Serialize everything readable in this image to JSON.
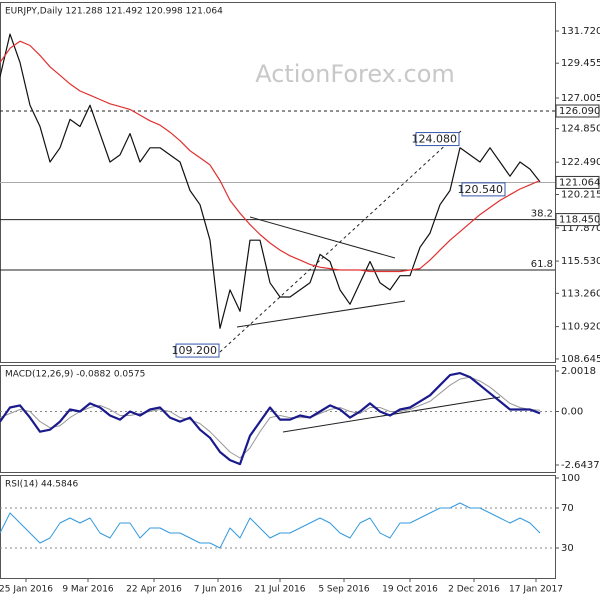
{
  "chart_data": [
    {
      "type": "line",
      "title": "EURJPY,Daily  121.288 121.492 120.998 121.064",
      "watermark": "ActionForex.com",
      "x": [
        0,
        5,
        10,
        15,
        20,
        25,
        30,
        35,
        40,
        45,
        50,
        55,
        60,
        65,
        70,
        75,
        80,
        85,
        90,
        95,
        100,
        105,
        110,
        115,
        120,
        125,
        130,
        135,
        140,
        145,
        150,
        155,
        160,
        165,
        170,
        175,
        180,
        185,
        190,
        195,
        200,
        205,
        210,
        215,
        220,
        225,
        230,
        235,
        240,
        245,
        250,
        255,
        260,
        265,
        270
      ],
      "xlim": [
        0,
        277.5
      ],
      "ylim": [
        108.43,
        133.76
      ],
      "yticks": [
        {
          "value": 131.72,
          "label": "131.720"
        },
        129.455,
        127.005,
        {
          "value": 124.85,
          "label": "124.850"
        },
        {
          "value": 122.49,
          "label": "122.490"
        },
        120.215,
        {
          "value": 117.87,
          "label": "117.870"
        },
        {
          "value": 115.53,
          "label": "115.530"
        },
        {
          "value": 113.26,
          "label": "113.260"
        },
        {
          "value": 110.92,
          "label": "110.920"
        },
        108.645
      ],
      "grid": false,
      "series": [
        {
          "color": "#111111",
          "width": 1.2,
          "values": [
            128.5,
            131.5,
            129.5,
            126.5,
            125,
            122.5,
            123.5,
            125.5,
            125,
            126.5,
            124.5,
            122.5,
            123,
            124.5,
            122.5,
            123.5,
            123.5,
            123,
            122.5,
            120.5,
            119.5,
            117,
            110.8,
            113.5,
            112,
            117,
            117,
            114,
            113,
            113,
            113.5,
            114,
            116,
            115.5,
            113.5,
            112.5,
            114,
            115.5,
            114,
            113.5,
            114.5,
            114.5,
            116.5,
            117.5,
            119.5,
            120.5,
            123.5,
            123,
            122.5,
            123.5,
            122.5,
            121.5,
            122.5,
            122,
            121.1
          ]
        },
        {
          "color": "#e03030",
          "width": 1.2,
          "values": [
            129.5,
            130.5,
            131,
            130.7,
            130,
            129.2,
            128.6,
            128,
            127.5,
            127.2,
            126.9,
            126.6,
            126.4,
            126.2,
            125.8,
            125.4,
            125.1,
            124.6,
            124,
            123.3,
            122.8,
            122.3,
            121.2,
            119.8,
            118.9,
            118.1,
            117.4,
            116.8,
            116.3,
            115.9,
            115.6,
            115.3,
            115.1,
            115,
            114.9,
            114.9,
            114.9,
            114.8,
            114.8,
            114.8,
            114.8,
            114.9,
            115,
            115.6,
            116.3,
            117,
            117.6,
            118.2,
            118.8,
            119.3,
            119.8,
            120.2,
            120.6,
            120.9,
            121.2
          ]
        }
      ],
      "levels": [
        {
          "value": 126.09,
          "label": "126.090",
          "dash": true
        },
        {
          "value": 118.45,
          "label": "118.450",
          "fib": "38.2"
        },
        {
          "value": 114.9,
          "fib": "61.8"
        }
      ],
      "last": {
        "value": 121.064,
        "label": "121.064"
      },
      "annotations": [
        {
          "x": 230,
          "value": 124.08,
          "label": "124.080"
        },
        {
          "x": 253,
          "value": 120.54,
          "label": "120.540"
        },
        {
          "x": 110,
          "value": 109.2,
          "label": "109.200"
        }
      ]
    },
    {
      "type": "line",
      "title": "MACD(12,26,9) -0.0882 0.0575",
      "x": [
        0,
        5,
        10,
        15,
        20,
        25,
        30,
        35,
        40,
        45,
        50,
        55,
        60,
        65,
        70,
        75,
        80,
        85,
        90,
        95,
        100,
        105,
        110,
        115,
        120,
        125,
        130,
        135,
        140,
        145,
        150,
        155,
        160,
        165,
        170,
        175,
        180,
        185,
        190,
        195,
        200,
        205,
        210,
        215,
        220,
        225,
        230,
        235,
        240,
        245,
        250,
        255,
        260,
        265,
        270
      ],
      "xlim": [
        0,
        277.5
      ],
      "ylim": [
        -2.99,
        2.298
      ],
      "yticks": [
        2.0018,
        {
          "value": 0,
          "label": "0.00"
        },
        -2.6437
      ],
      "zero_line": true,
      "series": [
        {
          "color": "#999999",
          "width": 1,
          "values": [
            -0.3,
            -0.1,
            0.1,
            0,
            -0.5,
            -0.8,
            -0.7,
            -0.3,
            0,
            0.2,
            0.3,
            0.1,
            -0.2,
            -0.2,
            -0.1,
            0,
            0.1,
            0,
            -0.3,
            -0.4,
            -0.6,
            -1,
            -1.5,
            -2,
            -2.3,
            -1.8,
            -1,
            -0.3,
            -0.2,
            -0.3,
            -0.3,
            -0.3,
            -0.1,
            0.1,
            0.2,
            0,
            -0.1,
            0.2,
            0.2,
            0,
            0,
            0.1,
            0.3,
            0.5,
            0.9,
            1.3,
            1.6,
            1.7,
            1.5,
            1.2,
            0.8,
            0.4,
            0.2,
            0.1,
            0.06
          ]
        },
        {
          "color": "#1a1a8c",
          "width": 2.2,
          "values": [
            -0.5,
            0.2,
            0.3,
            -0.3,
            -1,
            -0.9,
            -0.5,
            0.1,
            0,
            0.4,
            0.2,
            -0.2,
            -0.4,
            0,
            -0.2,
            0.1,
            0.2,
            -0.3,
            -0.5,
            -0.3,
            -0.9,
            -1.3,
            -2,
            -2.4,
            -2.6,
            -1.2,
            -0.5,
            0.2,
            -0.4,
            -0.4,
            -0.2,
            -0.3,
            0,
            0.3,
            0.1,
            -0.3,
            0,
            0.4,
            0,
            -0.2,
            0.1,
            0.2,
            0.5,
            0.8,
            1.3,
            1.8,
            1.9,
            1.7,
            1.3,
            0.9,
            0.5,
            0.1,
            0.1,
            0.1,
            -0.09
          ]
        }
      ]
    },
    {
      "type": "line",
      "title": "RSI(14) 44.5846",
      "x": [
        0,
        5,
        10,
        15,
        20,
        25,
        30,
        35,
        40,
        45,
        50,
        55,
        60,
        65,
        70,
        75,
        80,
        85,
        90,
        95,
        100,
        105,
        110,
        115,
        120,
        125,
        130,
        135,
        140,
        145,
        150,
        155,
        160,
        165,
        170,
        175,
        180,
        185,
        190,
        195,
        200,
        205,
        210,
        215,
        220,
        225,
        230,
        235,
        240,
        245,
        250,
        255,
        260,
        265,
        270
      ],
      "xlim": [
        0,
        277.5
      ],
      "ylim": [
        0,
        103
      ],
      "yticks": [
        100,
        70,
        30
      ],
      "dashed_ticks": [
        70,
        30
      ],
      "xticks": [
        {
          "value": 13,
          "label": "25 Jan 2016"
        },
        {
          "value": 44,
          "label": "9 Mar 2016"
        },
        {
          "value": 77,
          "label": "22 Apr 2016"
        },
        {
          "value": 109,
          "label": "7 Jun 2016"
        },
        {
          "value": 140,
          "label": "21 Jul 2016"
        },
        {
          "value": 172,
          "label": "5 Sep 2016"
        },
        {
          "value": 205,
          "label": "19 Oct 2016"
        },
        {
          "value": 237,
          "label": "2 Dec 2016"
        },
        {
          "value": 268,
          "label": "17 Jan 2017"
        }
      ],
      "series": [
        {
          "color": "#3399dd",
          "width": 1,
          "values": [
            45,
            65,
            55,
            45,
            35,
            40,
            55,
            60,
            55,
            60,
            45,
            40,
            55,
            55,
            40,
            50,
            50,
            45,
            45,
            40,
            35,
            35,
            30,
            50,
            40,
            60,
            50,
            40,
            45,
            45,
            50,
            55,
            60,
            55,
            45,
            40,
            55,
            60,
            45,
            40,
            55,
            55,
            60,
            65,
            70,
            70,
            75,
            70,
            70,
            65,
            60,
            55,
            60,
            55,
            45
          ]
        }
      ]
    }
  ]
}
